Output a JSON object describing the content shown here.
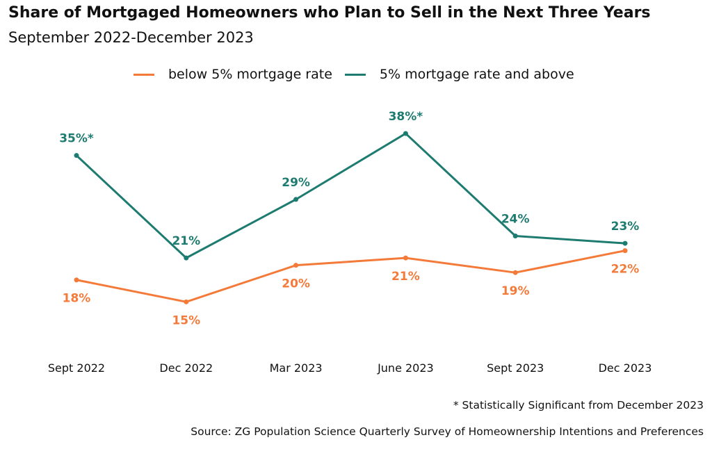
{
  "title": "Share of Mortgaged Homeowners who Plan to Sell in the Next Three Years",
  "subtitle": "September 2022-December 2023",
  "note": "* Statistically Significant from December 2023",
  "source": "Source: ZG Population Science Quarterly Survey of Homeownership Intentions and Preferences",
  "colors": {
    "below": "#F47A3A",
    "above": "#1E7B70"
  },
  "chart_data": {
    "type": "line",
    "title": "Share of Mortgaged Homeowners who Plan to Sell in the Next Three Years",
    "subtitle": "September 2022-December 2023",
    "categories": [
      "Sept 2022",
      "Dec 2022",
      "Mar 2023",
      "June 2023",
      "Sept 2023",
      "Dec 2023"
    ],
    "ylim": [
      10,
      40
    ],
    "grid": false,
    "legend_position": "top-center",
    "series": [
      {
        "name": "below 5% mortgage rate",
        "color": "#F47A3A",
        "values": [
          18,
          15,
          20,
          21,
          19,
          22
        ],
        "labels": [
          "18%",
          "15%",
          "20%",
          "21%",
          "19%",
          "22%"
        ],
        "label_position": [
          "below",
          "below",
          "below",
          "below",
          "below",
          "below"
        ]
      },
      {
        "name": "5% mortgage rate and above",
        "color": "#1E7B70",
        "values": [
          35,
          21,
          29,
          38,
          24,
          23
        ],
        "labels": [
          "35%*",
          "21%",
          "29%",
          "38%*",
          "24%",
          "23%"
        ],
        "label_position": [
          "above",
          "above",
          "above",
          "above",
          "above",
          "above"
        ]
      }
    ]
  }
}
